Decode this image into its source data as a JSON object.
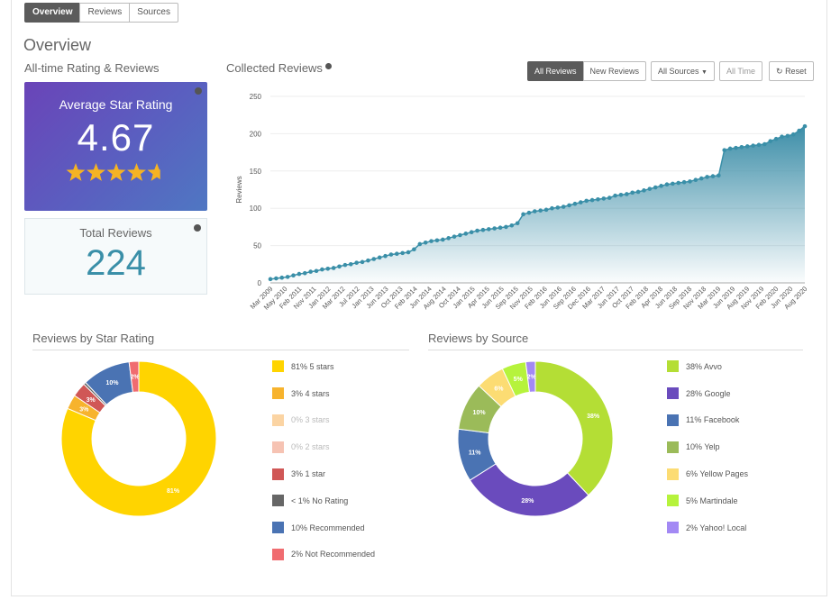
{
  "tabs": [
    "Overview",
    "Reviews",
    "Sources"
  ],
  "page_title": "Overview",
  "section_subtitle": "All-time Rating & Reviews",
  "average": {
    "label": "Average Star Rating",
    "value": "4.67",
    "stars": 4.67
  },
  "total": {
    "label": "Total Reviews",
    "value": "224"
  },
  "collected": {
    "title": "Collected Reviews",
    "buttons": {
      "all_reviews": "All Reviews",
      "new_reviews": "New Reviews",
      "all_sources": "All Sources",
      "all_time": "All Time",
      "reset": "Reset"
    }
  },
  "chart_data": [
    {
      "type": "area",
      "title": "",
      "ylabel": "Reviews",
      "ylim": [
        0,
        250
      ],
      "yticks": [
        0,
        50,
        100,
        150,
        200,
        250
      ],
      "xtick_labels": [
        "Mar 2009",
        "May 2010",
        "Feb 2011",
        "Nov 2011",
        "Jan 2012",
        "Mar 2012",
        "Jul 2012",
        "Jan 2013",
        "Jun 2013",
        "Oct 2013",
        "Feb 2014",
        "Jun 2014",
        "Aug 2014",
        "Oct 2014",
        "Jan 2015",
        "Apr 2015",
        "Jun 2015",
        "Sep 2015",
        "Nov 2015",
        "Feb 2016",
        "Jun 2016",
        "Sep 2016",
        "Dec 2016",
        "Mar 2017",
        "Jun 2017",
        "Oct 2017",
        "Feb 2018",
        "Apr 2018",
        "Jun 2018",
        "Sep 2018",
        "Nov 2018",
        "Mar 2019",
        "Jun 2019",
        "Aug 2019",
        "Nov 2019",
        "Feb 2020",
        "Jun 2020",
        "Aug 2020"
      ],
      "values": [
        5,
        6,
        7,
        8,
        10,
        12,
        13,
        15,
        16,
        18,
        19,
        20,
        22,
        24,
        25,
        27,
        28,
        30,
        32,
        34,
        36,
        38,
        39,
        40,
        41,
        45,
        52,
        54,
        56,
        57,
        58,
        60,
        62,
        64,
        66,
        68,
        70,
        71,
        72,
        73,
        74,
        75,
        77,
        80,
        92,
        94,
        96,
        97,
        98,
        100,
        101,
        102,
        104,
        106,
        108,
        110,
        111,
        112,
        113,
        114,
        117,
        118,
        119,
        121,
        122,
        124,
        126,
        128,
        130,
        132,
        133,
        134,
        135,
        136,
        138,
        140,
        142,
        143,
        144,
        178,
        180,
        181,
        182,
        183,
        184,
        185,
        186,
        190,
        193,
        196,
        197,
        199,
        204,
        210
      ]
    },
    {
      "type": "pie",
      "title": "Reviews by Star Rating",
      "slices": [
        {
          "label": "81% 5 stars",
          "value": 81,
          "color": "#ffd400"
        },
        {
          "label": "3% 4 stars",
          "value": 3,
          "color": "#f7b32d"
        },
        {
          "label": "0% 3 stars",
          "value": 0,
          "color": "#fbd4a3"
        },
        {
          "label": "0% 2 stars",
          "value": 0,
          "color": "#f6c3b3"
        },
        {
          "label": "3% 1 star",
          "value": 3,
          "color": "#d05756"
        },
        {
          "label": "< 1% No Rating",
          "value": 0.5,
          "color": "#666666"
        },
        {
          "label": "10% Recommended",
          "value": 10,
          "color": "#4a73b3"
        },
        {
          "label": "2% Not Recommended",
          "value": 2,
          "color": "#f06c70"
        }
      ],
      "slice_labels": [
        "81%",
        "3%",
        "",
        "",
        "3%",
        "",
        "10%",
        "2%"
      ]
    },
    {
      "type": "pie",
      "title": "Reviews by Source",
      "slices": [
        {
          "label": "38% Avvo",
          "value": 38,
          "color": "#b4de35"
        },
        {
          "label": "28% Google",
          "value": 28,
          "color": "#6a4bbd"
        },
        {
          "label": "11% Facebook",
          "value": 11,
          "color": "#4a73b3"
        },
        {
          "label": "10% Yelp",
          "value": 10,
          "color": "#9bbb59"
        },
        {
          "label": "6% Yellow Pages",
          "value": 6,
          "color": "#fcdc73"
        },
        {
          "label": "5% Martindale",
          "value": 5,
          "color": "#b6f33c"
        },
        {
          "label": "2% Yahoo! Local",
          "value": 2,
          "color": "#a389f4"
        }
      ],
      "slice_labels": [
        "38%",
        "28%",
        "11%",
        "10%",
        "6%",
        "5%",
        "2%"
      ]
    }
  ]
}
